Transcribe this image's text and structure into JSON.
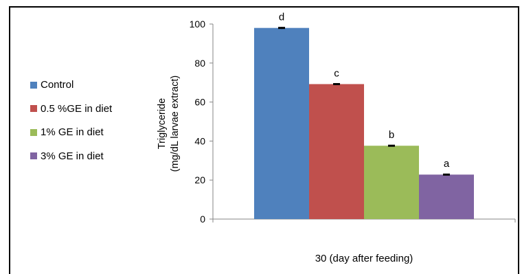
{
  "chart_data": {
    "type": "bar",
    "categories": [
      "30 (day after feeding)"
    ],
    "xlabel": "30 (day after feeding)",
    "ylabel_lines": [
      "Triglyceride",
      "(mg/dL larvae extract)"
    ],
    "ylim": [
      0,
      100
    ],
    "yticks": [
      "0",
      "20",
      "40",
      "60",
      "80",
      "100"
    ],
    "legend_position": "left",
    "grid": false,
    "series": [
      {
        "name": "Control",
        "values": [
          98
        ],
        "error": [
          0.5
        ],
        "label": "d",
        "color": "#4f81bd"
      },
      {
        "name": "0.5 %GE in diet",
        "values": [
          69.2
        ],
        "error": [
          0.4
        ],
        "label": "c",
        "color": "#c0504d"
      },
      {
        "name": "1% GE in diet",
        "values": [
          37.6
        ],
        "error": [
          0.4
        ],
        "label": "b",
        "color": "#9bbb59"
      },
      {
        "name": "3% GE in diet",
        "values": [
          22.8
        ],
        "error": [
          0.3
        ],
        "label": "a",
        "color": "#8064a2"
      }
    ]
  }
}
